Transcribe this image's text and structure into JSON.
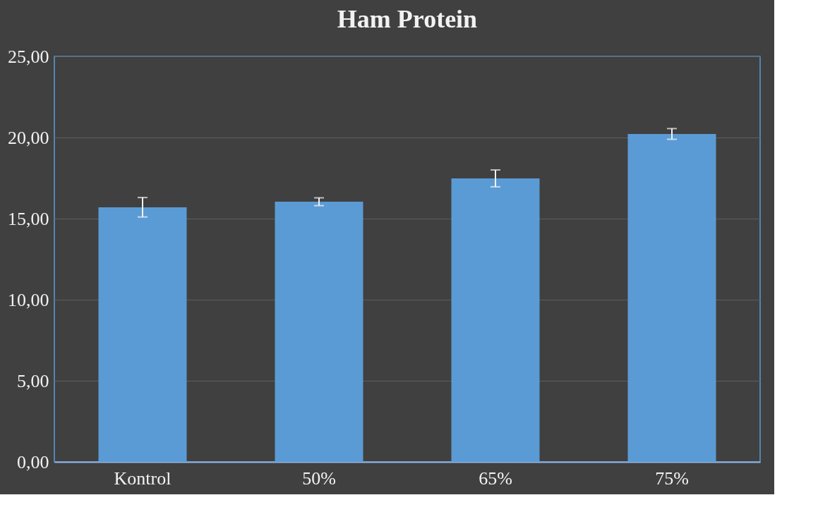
{
  "chart_data": {
    "type": "bar",
    "title": "Ham Protein",
    "categories": [
      "Kontrol",
      "50%",
      "65%",
      "75%"
    ],
    "values": [
      15.7,
      16.04,
      17.48,
      20.22
    ],
    "errors": [
      0.6,
      0.24,
      0.52,
      0.33
    ],
    "color": "#5b9bd5",
    "ylim": [
      0,
      25
    ],
    "yticks": [
      {
        "value": 0,
        "label": "0,00"
      },
      {
        "value": 5,
        "label": "5,00"
      },
      {
        "value": 10,
        "label": "10,00"
      },
      {
        "value": 15,
        "label": "15,00"
      },
      {
        "value": 20,
        "label": "20,00"
      },
      {
        "value": 25,
        "label": "25,00"
      }
    ],
    "grid": "y"
  }
}
